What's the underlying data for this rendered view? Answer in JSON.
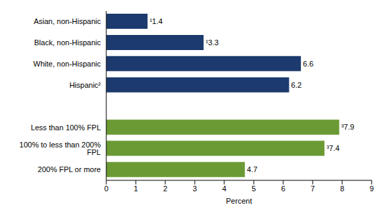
{
  "chart_data": {
    "type": "bar",
    "orientation": "horizontal",
    "categories": [
      "Asian, non-Hispanic",
      "Black, non-Hispanic",
      "White, non-Hispanic",
      "Hispanic²",
      null,
      "Less than 100% FPL",
      "100% to less than 200% FPL",
      "200% FPL or more"
    ],
    "values": [
      1.4,
      3.3,
      6.6,
      6.2,
      null,
      7.9,
      7.4,
      4.7
    ],
    "value_labels": [
      "¹1.4",
      "¹3.3",
      "6.6",
      "6.2",
      null,
      "³7.9",
      "³7.4",
      "4.7"
    ],
    "colors": [
      "#1c3a6e",
      "#1c3a6e",
      "#1c3a6e",
      "#1c3a6e",
      null,
      "#6b9a35",
      "#6b9a35",
      "#6b9a35"
    ],
    "x_label": "Percent",
    "xlim": [
      0,
      9
    ],
    "xticks": [
      0,
      1,
      2,
      3,
      4,
      5,
      6,
      7,
      8,
      9
    ],
    "grid": false,
    "data_labels": true
  }
}
